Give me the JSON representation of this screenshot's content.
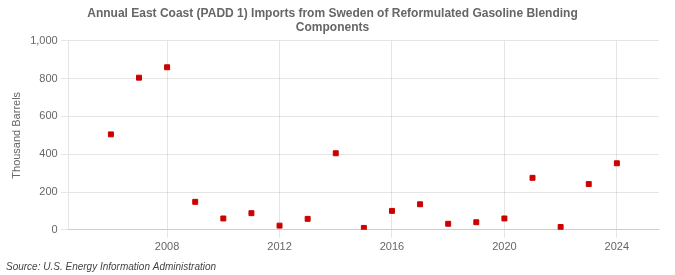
{
  "chart_data": {
    "type": "scatter",
    "title": "Annual East Coast (PADD 1) Imports from Sweden of Reformulated Gasoline Blending\nComponents",
    "ylabel": "Thousand Barrels",
    "annotation": "Source: U.S. Energy Information Administration",
    "x": [
      2006,
      2007,
      2008,
      2009,
      2010,
      2011,
      2012,
      2013,
      2014,
      2015,
      2016,
      2017,
      2018,
      2019,
      2020,
      2021,
      2022,
      2023,
      2024
    ],
    "values": [
      505,
      805,
      860,
      148,
      60,
      88,
      22,
      58,
      405,
      10,
      100,
      135,
      32,
      40,
      60,
      275,
      15,
      242,
      352
    ],
    "color": "#cc0000",
    "marker": "square",
    "xlim": [
      2004.5,
      2025.5
    ],
    "xticks": [
      2008,
      2012,
      2016,
      2020,
      2024
    ],
    "ylim": [
      0,
      1000
    ],
    "yticks": [
      0,
      200,
      400,
      600,
      800,
      {
        "value": 1000,
        "label": "1,000"
      }
    ],
    "grid": true
  }
}
